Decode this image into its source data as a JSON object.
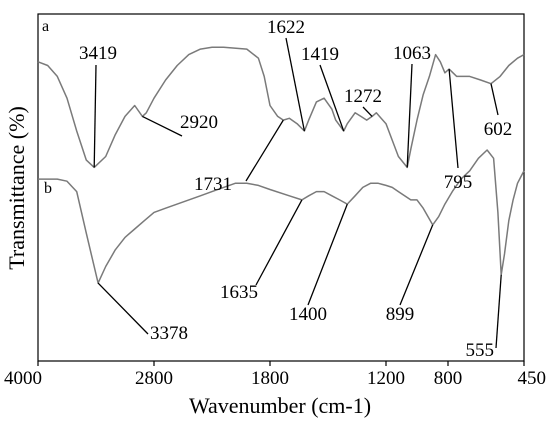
{
  "chart_data": {
    "type": "line",
    "title": "",
    "xlabel": "Wavenumber (cm-1)",
    "ylabel": "Transmittance (%)",
    "x_ticks": [
      "4000",
      "2800",
      "1800",
      "1200",
      "800",
      "450"
    ],
    "xlim": [
      4000,
      450
    ],
    "x_axis_reversed": true,
    "y_ticks_shown": false,
    "grid": false,
    "legend": "none",
    "colors": {
      "curves": "#7a7a7a",
      "axes": "#000000"
    },
    "series": [
      {
        "name": "a",
        "x": [
          4000,
          3900,
          3800,
          3700,
          3600,
          3500,
          3419,
          3300,
          3200,
          3100,
          3000,
          2920,
          2880,
          2800,
          2700,
          2600,
          2500,
          2400,
          2300,
          2200,
          2000,
          1900,
          1850,
          1800,
          1760,
          1731,
          1700,
          1660,
          1622,
          1600,
          1560,
          1520,
          1480,
          1460,
          1419,
          1400,
          1360,
          1330,
          1300,
          1272,
          1250,
          1200,
          1160,
          1120,
          1063,
          1040,
          1000,
          960,
          920,
          880,
          850,
          820,
          795,
          760,
          700,
          650,
          602,
          560,
          520,
          480,
          450
        ],
        "y": [
          88,
          86,
          80,
          68,
          50,
          34,
          30,
          36,
          48,
          58,
          64,
          58,
          60,
          68,
          78,
          86,
          92,
          95,
          96,
          96,
          95,
          90,
          80,
          64,
          58,
          56,
          57,
          54,
          50,
          56,
          66,
          68,
          62,
          56,
          50,
          54,
          60,
          58,
          56,
          58,
          60,
          54,
          45,
          36,
          30,
          40,
          56,
          70,
          80,
          92,
          88,
          82,
          84,
          80,
          80,
          78,
          76,
          80,
          86,
          90,
          92
        ]
      },
      {
        "name": "b",
        "x": [
          4000,
          3900,
          3800,
          3700,
          3600,
          3500,
          3378,
          3300,
          3200,
          3100,
          3000,
          2900,
          2800,
          2700,
          2600,
          2500,
          2400,
          2300,
          2200,
          2100,
          2000,
          1900,
          1800,
          1700,
          1635,
          1600,
          1560,
          1520,
          1480,
          1440,
          1400,
          1360,
          1320,
          1280,
          1240,
          1200,
          1160,
          1120,
          1080,
          1040,
          1000,
          960,
          899,
          860,
          820,
          780,
          740,
          700,
          660,
          620,
          590,
          570,
          555,
          540,
          520,
          500,
          480,
          460,
          450
        ],
        "y": [
          86,
          86,
          86,
          85,
          80,
          60,
          36,
          44,
          52,
          58,
          62,
          66,
          70,
          72,
          74,
          76,
          78,
          80,
          82,
          84,
          84,
          83,
          81,
          78,
          76,
          78,
          80,
          80,
          78,
          76,
          74,
          78,
          82,
          84,
          84,
          83,
          82,
          80,
          78,
          76,
          76,
          72,
          64,
          68,
          74,
          80,
          86,
          90,
          96,
          100,
          96,
          70,
          40,
          50,
          66,
          76,
          84,
          88,
          90
        ]
      }
    ],
    "series_tags": [
      "a",
      "b"
    ],
    "peak_labels": [
      {
        "text": "3419",
        "series": "a",
        "x": 3419
      },
      {
        "text": "2920",
        "series": "a",
        "x": 2920
      },
      {
        "text": "1731",
        "series": "a",
        "x": 1731
      },
      {
        "text": "1622",
        "series": "a",
        "x": 1622
      },
      {
        "text": "1419",
        "series": "a",
        "x": 1419
      },
      {
        "text": "1272",
        "series": "a",
        "x": 1272
      },
      {
        "text": "1063",
        "series": "a",
        "x": 1063
      },
      {
        "text": "795",
        "series": "a",
        "x": 795
      },
      {
        "text": "602",
        "series": "a",
        "x": 602
      },
      {
        "text": "1635",
        "series": "b",
        "x": 1635
      },
      {
        "text": "1400",
        "series": "b",
        "x": 1400
      },
      {
        "text": "899",
        "series": "b",
        "x": 899
      },
      {
        "text": "3378",
        "series": "b",
        "x": 3378
      },
      {
        "text": "555",
        "series": "b",
        "x": 555
      }
    ]
  }
}
